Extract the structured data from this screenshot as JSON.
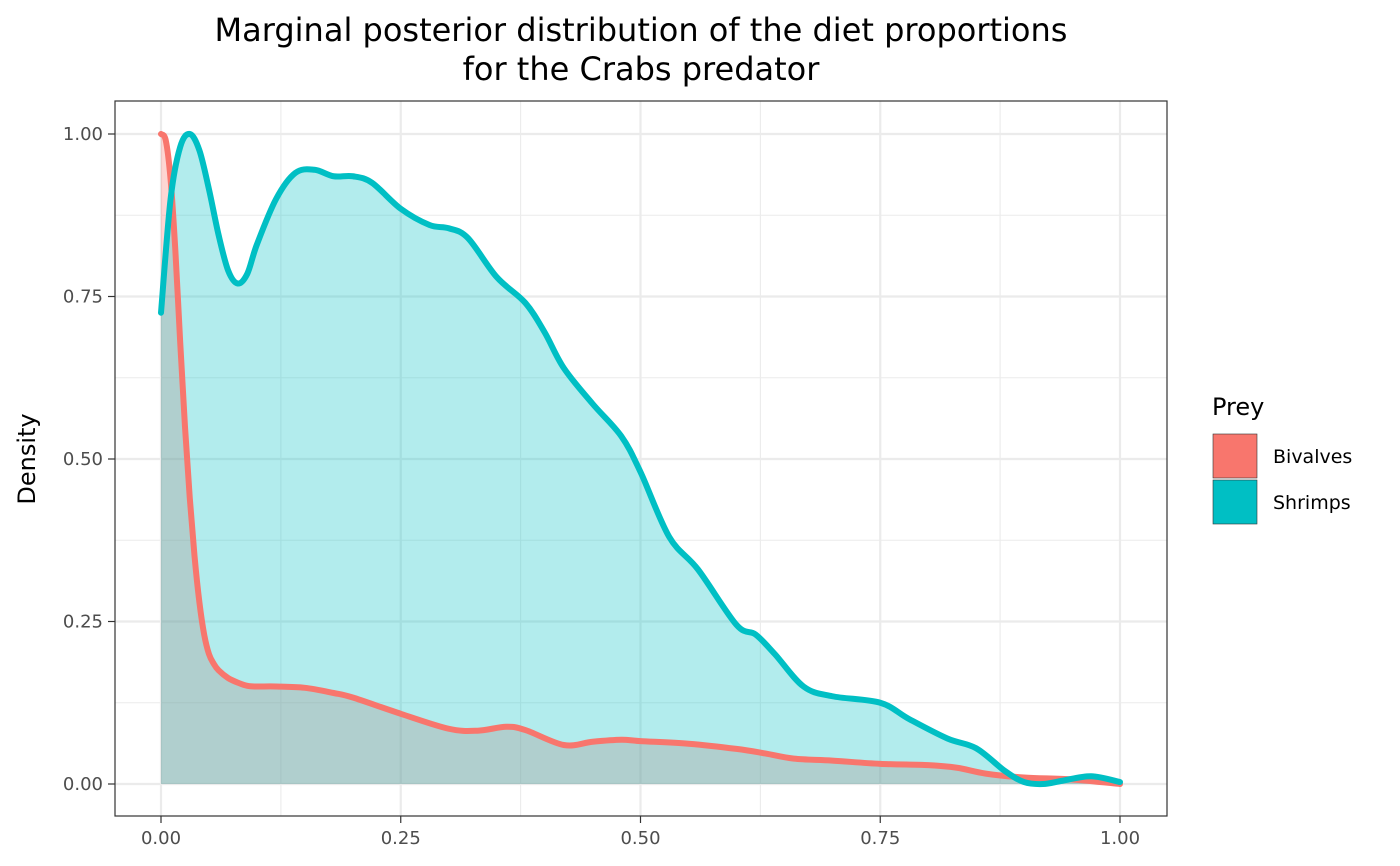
{
  "chart_data": {
    "type": "area",
    "title_lines": [
      "Marginal posterior distribution of the diet proportions",
      "for the Crabs predator"
    ],
    "xlabel": "",
    "ylabel": "Density",
    "xlim": [
      0,
      1
    ],
    "ylim": [
      0,
      1
    ],
    "x_ticks": [
      0,
      0.25,
      0.5,
      0.75,
      1
    ],
    "x_tick_labels": [
      "0.00",
      "0.25",
      "0.50",
      "0.75",
      "1.00"
    ],
    "y_ticks": [
      0,
      0.25,
      0.5,
      0.75,
      1
    ],
    "y_tick_labels": [
      "0.00",
      "0.25",
      "0.50",
      "0.75",
      "1.00"
    ],
    "grid": true,
    "legend": {
      "title": "Prey",
      "placement": "right",
      "entries": [
        "Bivalves",
        "Shrimps"
      ]
    },
    "series": [
      {
        "name": "Bivalves",
        "color": "#F8766D",
        "x": [
          0,
          0.005,
          0.01,
          0.015,
          0.02,
          0.025,
          0.03,
          0.035,
          0.04,
          0.045,
          0.05,
          0.055,
          0.06,
          0.07,
          0.08,
          0.09,
          0.1,
          0.12,
          0.15,
          0.18,
          0.2,
          0.25,
          0.3,
          0.33,
          0.36,
          0.38,
          0.42,
          0.45,
          0.48,
          0.5,
          0.55,
          0.6,
          0.63,
          0.66,
          0.7,
          0.75,
          0.8,
          0.83,
          0.86,
          0.9,
          0.95,
          1.0
        ],
        "values": [
          1.0,
          0.99,
          0.93,
          0.82,
          0.68,
          0.55,
          0.44,
          0.35,
          0.28,
          0.23,
          0.2,
          0.185,
          0.175,
          0.163,
          0.156,
          0.151,
          0.15,
          0.15,
          0.148,
          0.14,
          0.133,
          0.108,
          0.085,
          0.082,
          0.088,
          0.083,
          0.06,
          0.065,
          0.068,
          0.066,
          0.062,
          0.054,
          0.047,
          0.039,
          0.036,
          0.031,
          0.029,
          0.025,
          0.016,
          0.01,
          0.007,
          0.0
        ]
      },
      {
        "name": "Shrimps",
        "color": "#00BFC4",
        "x": [
          0,
          0.01,
          0.02,
          0.03,
          0.04,
          0.05,
          0.06,
          0.07,
          0.08,
          0.09,
          0.1,
          0.12,
          0.14,
          0.16,
          0.18,
          0.2,
          0.22,
          0.25,
          0.28,
          0.3,
          0.32,
          0.35,
          0.38,
          0.4,
          0.42,
          0.45,
          0.48,
          0.5,
          0.53,
          0.56,
          0.6,
          0.62,
          0.64,
          0.67,
          0.7,
          0.75,
          0.78,
          0.82,
          0.85,
          0.88,
          0.9,
          0.92,
          0.94,
          0.97,
          1.0
        ],
        "values": [
          0.725,
          0.9,
          0.98,
          1.0,
          0.975,
          0.915,
          0.845,
          0.79,
          0.77,
          0.785,
          0.83,
          0.9,
          0.94,
          0.945,
          0.935,
          0.935,
          0.925,
          0.885,
          0.86,
          0.855,
          0.84,
          0.78,
          0.74,
          0.695,
          0.64,
          0.585,
          0.535,
          0.48,
          0.38,
          0.33,
          0.245,
          0.23,
          0.2,
          0.15,
          0.135,
          0.125,
          0.1,
          0.07,
          0.055,
          0.02,
          0.003,
          0.0,
          0.005,
          0.012,
          0.003
        ]
      }
    ]
  }
}
